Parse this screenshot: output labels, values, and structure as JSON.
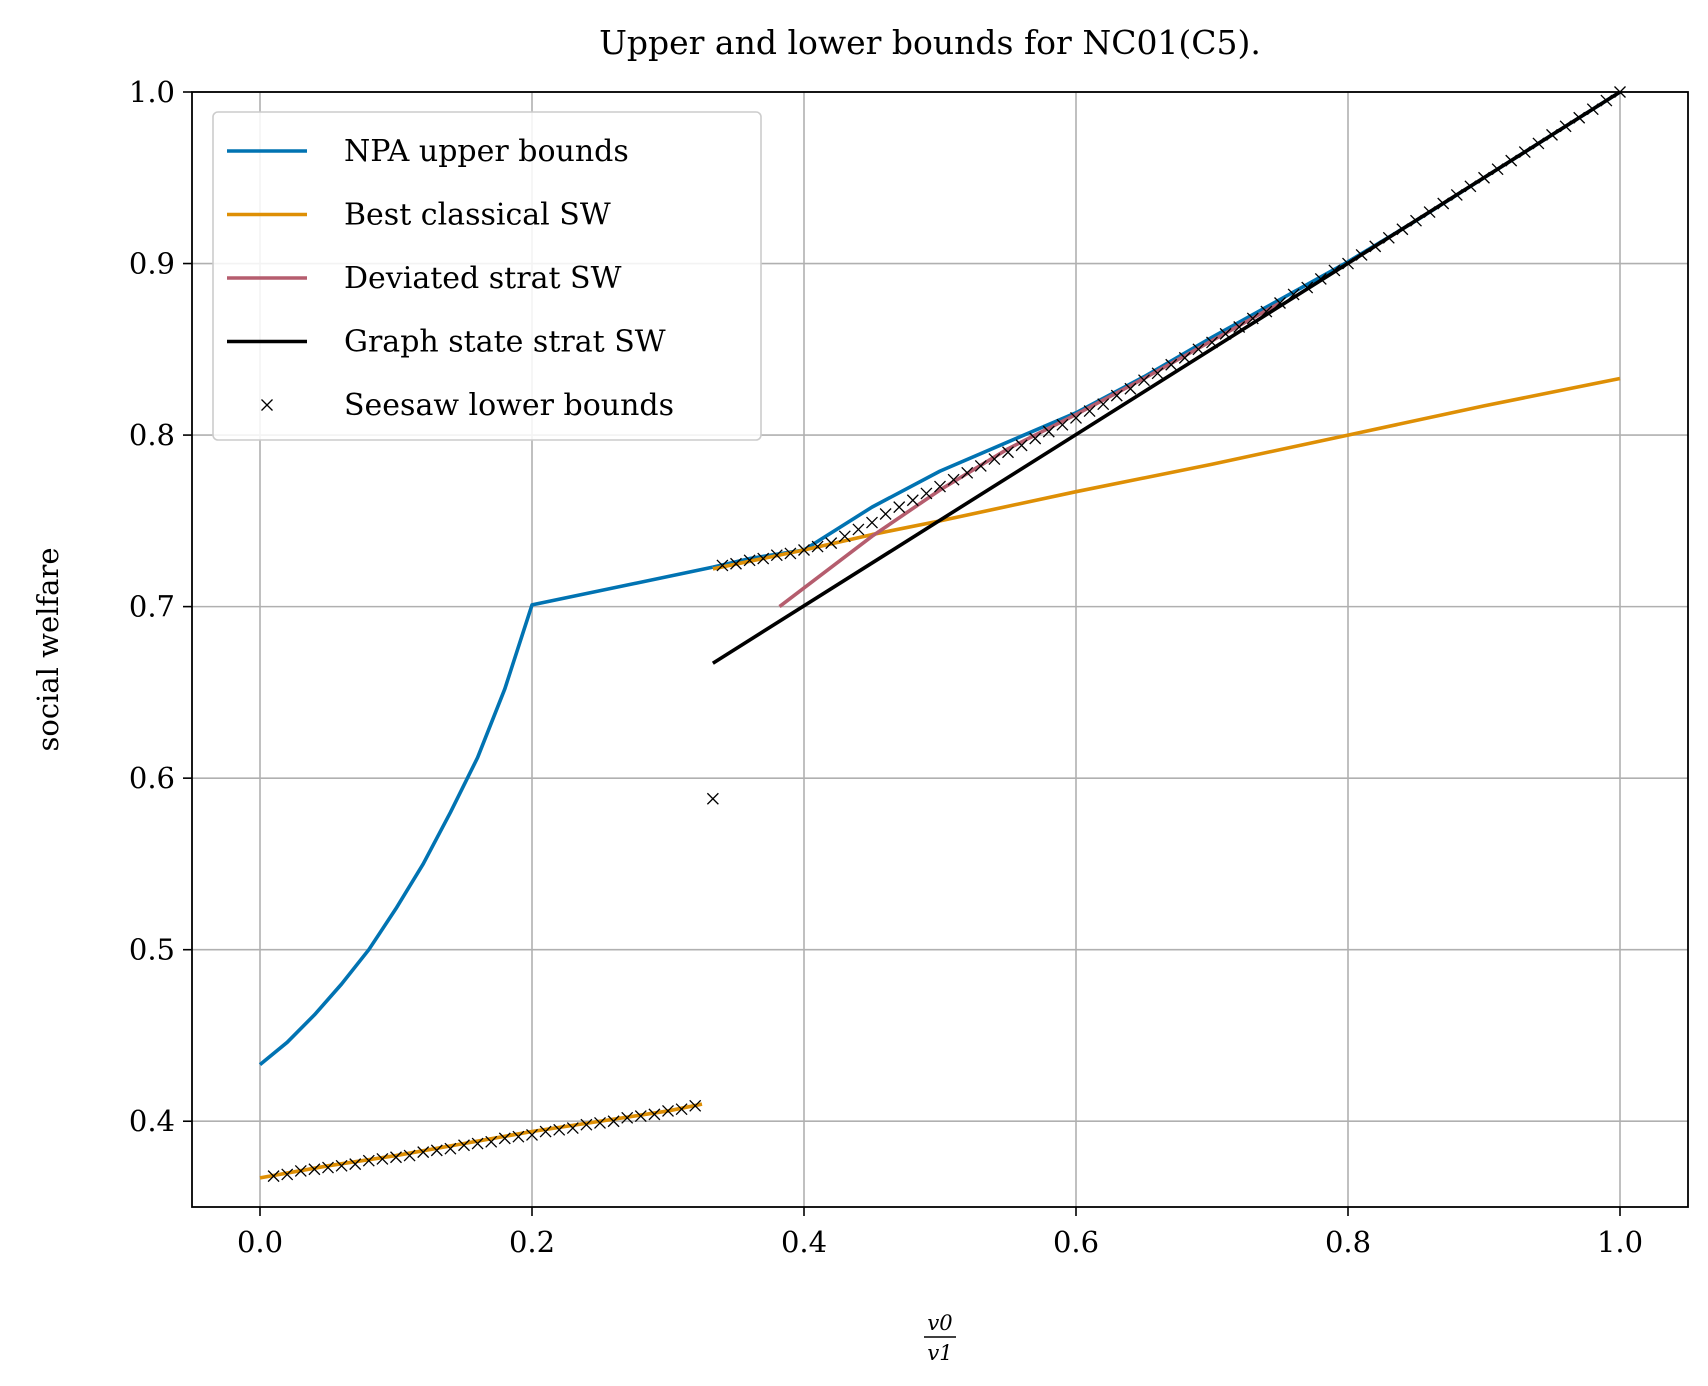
{
  "chart_data": {
    "type": "line",
    "title": "Upper and lower bounds for NC01(C5).",
    "xlabel": {
      "numerator": "v0",
      "denominator": "v1"
    },
    "ylabel": "social welfare",
    "xlim": [
      -0.05,
      1.05
    ],
    "ylim": [
      0.35,
      1.0
    ],
    "x_ticks": [
      0.0,
      0.2,
      0.4,
      0.6,
      0.8,
      1.0
    ],
    "x_tick_labels": [
      "0.0",
      "0.2",
      "0.4",
      "0.6",
      "0.8",
      "1.0"
    ],
    "y_ticks": [
      0.4,
      0.5,
      0.6,
      0.7,
      0.8,
      0.9,
      1.0
    ],
    "y_tick_labels": [
      "0.4",
      "0.5",
      "0.6",
      "0.7",
      "0.8",
      "0.9",
      "1.0"
    ],
    "grid": true,
    "legend_position": "upper-left",
    "series": [
      {
        "name": "NPA upper bounds",
        "color": "#0173b2",
        "kind": "line",
        "segments": [
          {
            "x": [
              0.0,
              0.02,
              0.04,
              0.06,
              0.08,
              0.1,
              0.12,
              0.14,
              0.16,
              0.18,
              0.2,
              0.333
            ],
            "y": [
              0.433,
              0.446,
              0.462,
              0.48,
              0.5,
              0.524,
              0.55,
              0.58,
              0.612,
              0.652,
              0.701,
              0.723
            ]
          },
          {
            "x": [
              0.333,
              0.36,
              0.4,
              0.45,
              0.5,
              0.55,
              0.6,
              0.65,
              0.7,
              0.75,
              0.8,
              0.85,
              0.9,
              0.95,
              1.0
            ],
            "y": [
              0.723,
              0.728,
              0.733,
              0.758,
              0.779,
              0.796,
              0.813,
              0.834,
              0.857,
              0.879,
              0.901,
              0.925,
              0.95,
              0.975,
              1.0
            ]
          }
        ]
      },
      {
        "name": "Best classical SW",
        "color": "#de8f05",
        "kind": "line",
        "segments": [
          {
            "x": [
              0.0,
              0.05,
              0.1,
              0.15,
              0.2,
              0.25,
              0.3,
              0.325
            ],
            "y": [
              0.367,
              0.374,
              0.38,
              0.387,
              0.394,
              0.4,
              0.406,
              0.41
            ]
          },
          {
            "x": [
              0.333,
              0.4,
              0.45,
              0.5,
              0.6,
              0.7,
              0.8,
              0.9,
              1.0
            ],
            "y": [
              0.722,
              0.733,
              0.742,
              0.75,
              0.767,
              0.783,
              0.8,
              0.817,
              0.833
            ]
          }
        ]
      },
      {
        "name": "Deviated strat SW",
        "color": "#b55d6e",
        "kind": "line",
        "segments": [
          {
            "x": [
              0.382,
              0.45,
              0.5,
              0.55,
              0.6,
              0.65,
              0.7,
              0.75
            ],
            "y": [
              0.7,
              0.741,
              0.768,
              0.792,
              0.812,
              0.833,
              0.855,
              0.877
            ]
          }
        ]
      },
      {
        "name": "Graph state strat SW",
        "color": "#000000",
        "kind": "line",
        "segments": [
          {
            "x": [
              0.333,
              1.0
            ],
            "y": [
              0.667,
              1.0
            ]
          }
        ]
      },
      {
        "name": "Seesaw lower bounds",
        "color": "#000000",
        "kind": "marker",
        "points": {
          "x": [
            0.01,
            0.02,
            0.03,
            0.04,
            0.05,
            0.06,
            0.07,
            0.08,
            0.09,
            0.1,
            0.11,
            0.12,
            0.13,
            0.14,
            0.15,
            0.16,
            0.17,
            0.18,
            0.19,
            0.2,
            0.21,
            0.22,
            0.23,
            0.24,
            0.25,
            0.26,
            0.27,
            0.28,
            0.29,
            0.3,
            0.31,
            0.32,
            0.333,
            0.34,
            0.35,
            0.36,
            0.37,
            0.38,
            0.39,
            0.4,
            0.41,
            0.42,
            0.43,
            0.44,
            0.45,
            0.46,
            0.47,
            0.48,
            0.49,
            0.5,
            0.51,
            0.52,
            0.53,
            0.54,
            0.55,
            0.56,
            0.57,
            0.58,
            0.59,
            0.6,
            0.61,
            0.62,
            0.63,
            0.64,
            0.65,
            0.66,
            0.67,
            0.68,
            0.69,
            0.7,
            0.71,
            0.72,
            0.73,
            0.74,
            0.75,
            0.76,
            0.77,
            0.78,
            0.79,
            0.8,
            0.81,
            0.82,
            0.83,
            0.84,
            0.85,
            0.86,
            0.87,
            0.88,
            0.89,
            0.9,
            0.91,
            0.92,
            0.93,
            0.94,
            0.95,
            0.96,
            0.97,
            0.98,
            0.99,
            1.0
          ],
          "y": [
            0.368,
            0.369,
            0.371,
            0.372,
            0.373,
            0.374,
            0.375,
            0.377,
            0.378,
            0.379,
            0.38,
            0.382,
            0.383,
            0.384,
            0.386,
            0.387,
            0.388,
            0.39,
            0.391,
            0.392,
            0.394,
            0.395,
            0.396,
            0.398,
            0.399,
            0.4,
            0.402,
            0.403,
            0.404,
            0.406,
            0.407,
            0.409,
            0.588,
            0.724,
            0.725,
            0.727,
            0.728,
            0.73,
            0.731,
            0.733,
            0.735,
            0.737,
            0.741,
            0.745,
            0.749,
            0.754,
            0.758,
            0.762,
            0.766,
            0.77,
            0.774,
            0.778,
            0.782,
            0.786,
            0.79,
            0.794,
            0.798,
            0.802,
            0.806,
            0.81,
            0.814,
            0.818,
            0.823,
            0.827,
            0.832,
            0.836,
            0.841,
            0.845,
            0.85,
            0.854,
            0.859,
            0.863,
            0.868,
            0.872,
            0.877,
            0.882,
            0.886,
            0.891,
            0.896,
            0.9,
            0.905,
            0.91,
            0.915,
            0.92,
            0.925,
            0.93,
            0.935,
            0.94,
            0.945,
            0.95,
            0.955,
            0.96,
            0.965,
            0.97,
            0.975,
            0.98,
            0.985,
            0.99,
            0.995,
            1.0
          ]
        }
      }
    ]
  }
}
